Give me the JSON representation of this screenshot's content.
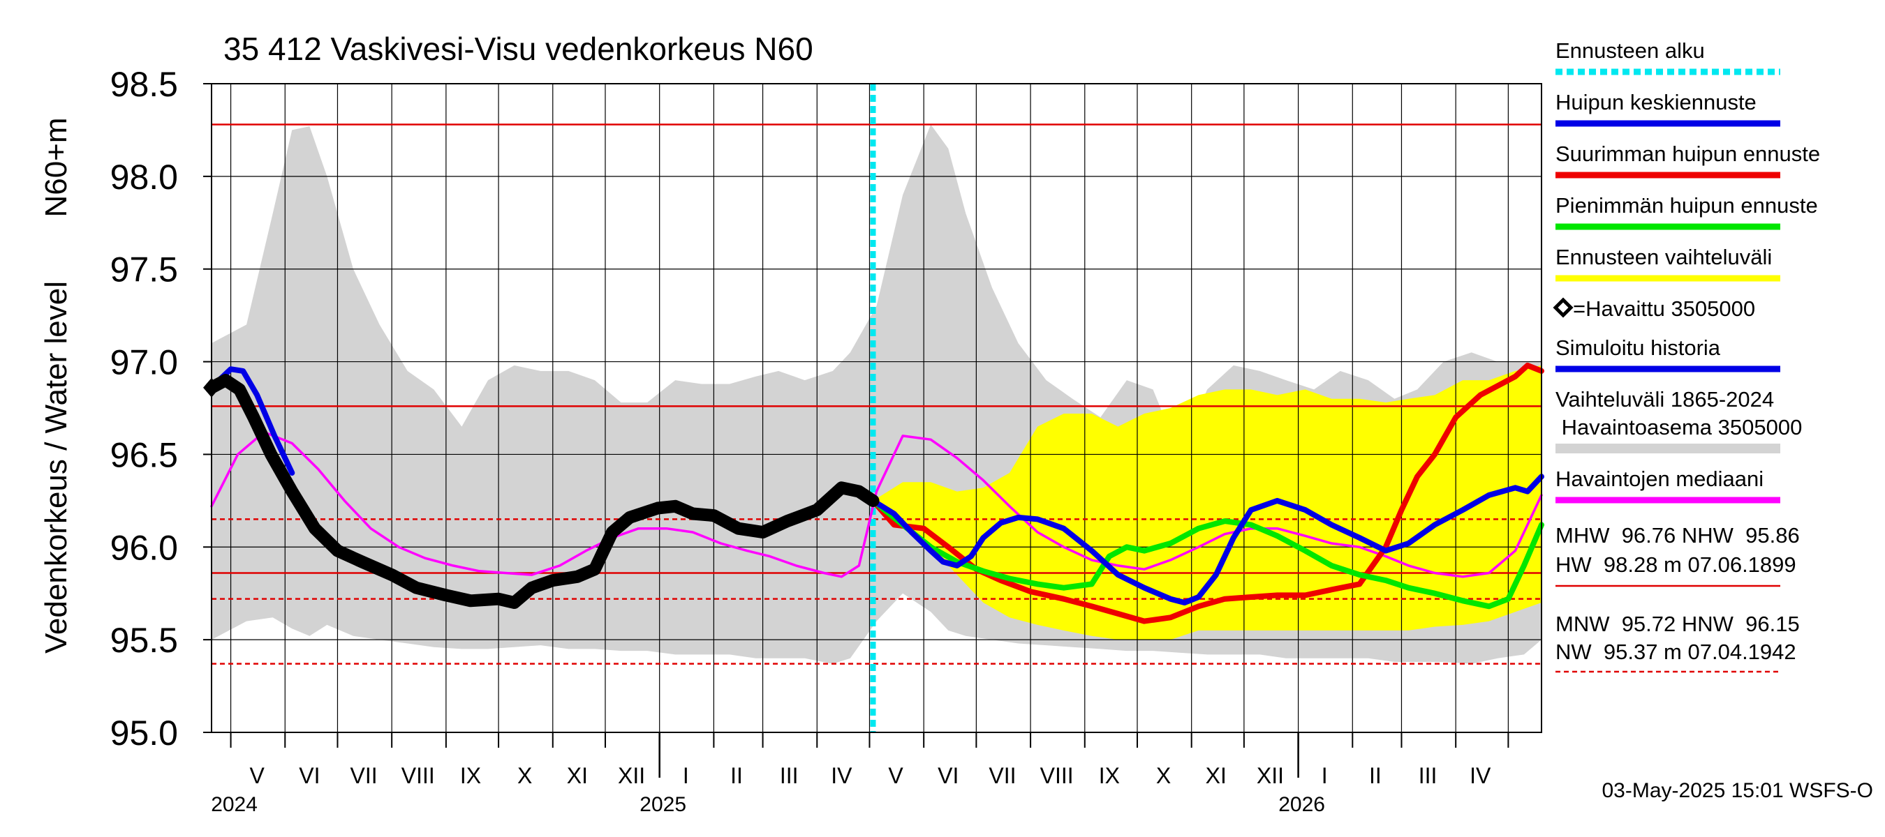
{
  "chart_data": {
    "type": "line",
    "title": "35 412 Vaskivesi-Visu vedenkorkeus N60",
    "ylabel_left": "Vedenkorkeus / Water level",
    "ylabel_unit": "N60+m",
    "ylim": [
      95.0,
      98.5
    ],
    "yticks": [
      95.0,
      95.5,
      96.0,
      96.5,
      97.0,
      97.5,
      98.0,
      98.5
    ],
    "ytick_labels": [
      "95.0",
      "95.5",
      "96.0",
      "96.5",
      "97.0",
      "97.5",
      "98.0",
      "98.5"
    ],
    "x_range": [
      "2024-04-20",
      "2026-05-20"
    ],
    "month_labels": [
      {
        "label": "V",
        "date": "2024-05-16"
      },
      {
        "label": "VI",
        "date": "2024-06-15"
      },
      {
        "label": "VII",
        "date": "2024-07-16"
      },
      {
        "label": "VIII",
        "date": "2024-08-16"
      },
      {
        "label": "IX",
        "date": "2024-09-15"
      },
      {
        "label": "X",
        "date": "2024-10-16"
      },
      {
        "label": "XI",
        "date": "2024-11-15"
      },
      {
        "label": "XII",
        "date": "2024-12-16"
      },
      {
        "label": "I",
        "date": "2025-01-16"
      },
      {
        "label": "II",
        "date": "2025-02-14"
      },
      {
        "label": "III",
        "date": "2025-03-16"
      },
      {
        "label": "IV",
        "date": "2025-04-15"
      },
      {
        "label": "V",
        "date": "2025-05-16"
      },
      {
        "label": "VI",
        "date": "2025-06-15"
      },
      {
        "label": "VII",
        "date": "2025-07-16"
      },
      {
        "label": "VIII",
        "date": "2025-08-16"
      },
      {
        "label": "IX",
        "date": "2025-09-15"
      },
      {
        "label": "X",
        "date": "2025-10-16"
      },
      {
        "label": "XI",
        "date": "2025-11-15"
      },
      {
        "label": "XII",
        "date": "2025-12-16"
      },
      {
        "label": "I",
        "date": "2026-01-16"
      },
      {
        "label": "II",
        "date": "2026-02-14"
      },
      {
        "label": "III",
        "date": "2026-03-16"
      },
      {
        "label": "IV",
        "date": "2026-04-15"
      }
    ],
    "year_labels": [
      {
        "label": "2024",
        "date": "2024-05-01"
      },
      {
        "label": "2025",
        "date": "2025-01-01"
      },
      {
        "label": "2026",
        "date": "2026-01-01"
      }
    ],
    "forecast_start": "2025-05-03",
    "reference_lines": [
      {
        "name": "HW",
        "value": 98.28,
        "style": "solid",
        "color": "#e00000"
      },
      {
        "name": "MHW",
        "value": 96.76,
        "style": "solid",
        "color": "#e00000"
      },
      {
        "name": "HNW",
        "value": 96.15,
        "style": "dashed",
        "color": "#e00000"
      },
      {
        "name": "NHW",
        "value": 95.86,
        "style": "solid",
        "color": "#e00000"
      },
      {
        "name": "MNW",
        "value": 95.72,
        "style": "dashed",
        "color": "#e00000"
      },
      {
        "name": "NW",
        "value": 95.37,
        "style": "dashed",
        "color": "#e00000"
      }
    ],
    "historical_range": {
      "color": "#d3d3d3",
      "dates": [
        "2024-04-20",
        "2024-05-10",
        "2024-05-25",
        "2024-06-05",
        "2024-06-15",
        "2024-06-25",
        "2024-07-10",
        "2024-07-25",
        "2024-08-10",
        "2024-08-25",
        "2024-09-10",
        "2024-09-25",
        "2024-10-10",
        "2024-10-25",
        "2024-11-10",
        "2024-11-25",
        "2024-12-10",
        "2024-12-25",
        "2025-01-10",
        "2025-01-25",
        "2025-02-10",
        "2025-02-25",
        "2025-03-10",
        "2025-03-25",
        "2025-04-10",
        "2025-04-20",
        "2025-05-05",
        "2025-05-20",
        "2025-06-05",
        "2025-06-15",
        "2025-06-25",
        "2025-07-10",
        "2025-07-25",
        "2025-08-10",
        "2025-08-25",
        "2025-09-10",
        "2025-09-25",
        "2025-10-10",
        "2025-10-25",
        "2025-11-10",
        "2025-11-25",
        "2025-12-10",
        "2025-12-25",
        "2026-01-10",
        "2026-01-25",
        "2026-02-10",
        "2026-02-25",
        "2026-03-10",
        "2026-03-25",
        "2026-04-10",
        "2026-04-25",
        "2026-05-10",
        "2026-05-20"
      ],
      "upper": [
        97.1,
        97.2,
        97.8,
        98.25,
        98.27,
        98.0,
        97.5,
        97.2,
        96.95,
        96.85,
        96.65,
        96.9,
        96.98,
        96.95,
        96.95,
        96.9,
        96.78,
        96.78,
        96.9,
        96.88,
        96.88,
        96.92,
        96.95,
        96.9,
        96.95,
        97.05,
        97.3,
        97.9,
        98.28,
        98.15,
        97.8,
        97.4,
        97.1,
        96.9,
        96.8,
        96.7,
        96.9,
        96.85,
        96.5,
        96.85,
        96.98,
        96.95,
        96.9,
        96.85,
        96.95,
        96.9,
        96.8,
        96.85,
        97.0,
        97.05,
        97.0,
        97.0,
        97.0
      ],
      "lower": [
        95.5,
        95.6,
        95.62,
        95.56,
        95.52,
        95.58,
        95.52,
        95.5,
        95.48,
        95.46,
        95.45,
        95.45,
        95.46,
        95.47,
        95.45,
        95.45,
        95.44,
        95.44,
        95.42,
        95.42,
        95.42,
        95.4,
        95.4,
        95.4,
        95.37,
        95.4,
        95.6,
        95.75,
        95.65,
        95.55,
        95.52,
        95.5,
        95.48,
        95.47,
        95.46,
        95.45,
        95.44,
        95.44,
        95.43,
        95.42,
        95.42,
        95.42,
        95.4,
        95.4,
        95.4,
        95.4,
        95.38,
        95.38,
        95.38,
        95.37,
        95.4,
        95.42,
        95.5
      ]
    },
    "forecast_range": {
      "color": "#ffff00",
      "dates": [
        "2025-05-03",
        "2025-05-20",
        "2025-06-05",
        "2025-06-20",
        "2025-07-05",
        "2025-07-20",
        "2025-08-05",
        "2025-08-20",
        "2025-09-05",
        "2025-09-20",
        "2025-10-05",
        "2025-10-20",
        "2025-11-05",
        "2025-11-20",
        "2025-12-05",
        "2025-12-20",
        "2026-01-05",
        "2026-01-20",
        "2026-02-05",
        "2026-02-20",
        "2026-03-05",
        "2026-03-20",
        "2026-04-05",
        "2026-04-20",
        "2026-05-05",
        "2026-05-20"
      ],
      "upper": [
        96.25,
        96.35,
        96.35,
        96.3,
        96.32,
        96.4,
        96.65,
        96.72,
        96.72,
        96.65,
        96.72,
        96.75,
        96.82,
        96.85,
        96.85,
        96.82,
        96.85,
        96.8,
        96.8,
        96.78,
        96.8,
        96.82,
        96.9,
        96.9,
        96.95,
        96.98
      ],
      "lower": [
        96.25,
        96.1,
        96.0,
        95.85,
        95.7,
        95.62,
        95.58,
        95.55,
        95.52,
        95.5,
        95.5,
        95.5,
        95.55,
        95.55,
        95.55,
        95.55,
        95.55,
        95.55,
        95.55,
        95.55,
        95.55,
        95.57,
        95.58,
        95.6,
        95.65,
        95.7
      ]
    },
    "series": [
      {
        "name": "=Havaittu 3505000",
        "color": "#000000",
        "dates": [
          "2024-04-20",
          "2024-04-28",
          "2024-05-06",
          "2024-05-14",
          "2024-05-24",
          "2024-06-05",
          "2024-06-18",
          "2024-07-01",
          "2024-07-15",
          "2024-08-01",
          "2024-08-15",
          "2024-09-01",
          "2024-09-15",
          "2024-10-01",
          "2024-10-10",
          "2024-10-20",
          "2024-11-01",
          "2024-11-15",
          "2024-11-25",
          "2024-12-05",
          "2024-12-15",
          "2024-12-31",
          "2025-01-10",
          "2025-01-20",
          "2025-02-01",
          "2025-02-15",
          "2025-03-01",
          "2025-03-15",
          "2025-04-01",
          "2025-04-15",
          "2025-04-25",
          "2025-05-03"
        ],
        "values": [
          96.86,
          96.9,
          96.85,
          96.7,
          96.5,
          96.3,
          96.1,
          95.98,
          95.92,
          95.85,
          95.78,
          95.74,
          95.71,
          95.72,
          95.7,
          95.78,
          95.82,
          95.84,
          95.88,
          96.08,
          96.16,
          96.21,
          96.22,
          96.18,
          96.17,
          96.1,
          96.08,
          96.14,
          96.2,
          96.32,
          96.3,
          96.25
        ]
      },
      {
        "name": "Simuloitu historia",
        "color": "#0000e6",
        "dates": [
          "2024-04-22",
          "2024-05-01",
          "2024-05-08",
          "2024-05-16",
          "2024-05-26",
          "2024-06-05"
        ],
        "values": [
          96.88,
          96.96,
          96.95,
          96.82,
          96.6,
          96.4
        ]
      },
      {
        "name": "Havaintojen mediaani",
        "color": "#ff00ff",
        "dates": [
          "2024-04-20",
          "2024-05-05",
          "2024-05-20",
          "2024-06-05",
          "2024-06-20",
          "2024-07-05",
          "2024-07-20",
          "2024-08-05",
          "2024-08-20",
          "2024-09-05",
          "2024-09-20",
          "2024-10-05",
          "2024-10-20",
          "2024-11-05",
          "2024-11-20",
          "2024-12-05",
          "2024-12-20",
          "2025-01-05",
          "2025-01-20",
          "2025-02-05",
          "2025-02-20",
          "2025-03-05",
          "2025-03-20",
          "2025-04-05",
          "2025-04-15",
          "2025-04-25",
          "2025-05-05",
          "2025-05-20",
          "2025-06-05",
          "2025-06-20",
          "2025-07-05",
          "2025-07-20",
          "2025-08-05",
          "2025-08-20",
          "2025-09-05",
          "2025-09-20",
          "2025-10-05",
          "2025-10-20",
          "2025-11-05",
          "2025-11-20",
          "2025-12-05",
          "2025-12-20",
          "2026-01-05",
          "2026-01-20",
          "2026-02-05",
          "2026-02-20",
          "2026-03-05",
          "2026-03-20",
          "2026-04-05",
          "2026-04-20",
          "2026-05-05",
          "2026-05-20"
        ],
        "values": [
          96.22,
          96.5,
          96.62,
          96.56,
          96.42,
          96.25,
          96.1,
          96.0,
          95.94,
          95.9,
          95.87,
          95.86,
          95.85,
          95.9,
          95.98,
          96.05,
          96.1,
          96.1,
          96.08,
          96.02,
          95.98,
          95.95,
          95.9,
          95.86,
          95.84,
          95.9,
          96.3,
          96.6,
          96.58,
          96.48,
          96.36,
          96.22,
          96.08,
          96.0,
          95.93,
          95.9,
          95.88,
          95.93,
          96.0,
          96.07,
          96.1,
          96.1,
          96.06,
          96.02,
          96.0,
          95.95,
          95.9,
          95.86,
          95.84,
          95.86,
          95.98,
          96.28
        ]
      },
      {
        "name": "Huipun keskiennuste",
        "color": "#0000e6",
        "dates": [
          "2025-05-03",
          "2025-05-15",
          "2025-05-25",
          "2025-06-05",
          "2025-06-12",
          "2025-06-20",
          "2025-06-28",
          "2025-07-05",
          "2025-07-15",
          "2025-07-25",
          "2025-08-05",
          "2025-08-20",
          "2025-09-05",
          "2025-09-20",
          "2025-10-05",
          "2025-10-20",
          "2025-10-28",
          "2025-11-05",
          "2025-11-15",
          "2025-11-25",
          "2025-12-05",
          "2025-12-20",
          "2026-01-05",
          "2026-01-20",
          "2026-02-05",
          "2026-02-20",
          "2026-03-05",
          "2026-03-20",
          "2026-04-05",
          "2026-04-20",
          "2026-05-05",
          "2026-05-12",
          "2026-05-20"
        ],
        "values": [
          96.25,
          96.18,
          96.08,
          95.98,
          95.92,
          95.9,
          95.95,
          96.05,
          96.13,
          96.16,
          96.15,
          96.1,
          95.98,
          95.85,
          95.78,
          95.72,
          95.7,
          95.73,
          95.85,
          96.05,
          96.2,
          96.25,
          96.2,
          96.12,
          96.05,
          95.98,
          96.02,
          96.12,
          96.2,
          96.28,
          96.32,
          96.3,
          96.38
        ]
      },
      {
        "name": "Suurimman huipun ennuste",
        "color": "#ee0000",
        "dates": [
          "2025-05-03",
          "2025-05-15",
          "2025-06-01",
          "2025-06-15",
          "2025-07-01",
          "2025-07-15",
          "2025-08-01",
          "2025-08-20",
          "2025-09-05",
          "2025-09-20",
          "2025-10-05",
          "2025-10-20",
          "2025-11-05",
          "2025-11-20",
          "2025-12-05",
          "2025-12-20",
          "2026-01-05",
          "2026-01-20",
          "2026-02-05",
          "2026-02-20",
          "2026-03-01",
          "2026-03-10",
          "2026-03-20",
          "2026-04-01",
          "2026-04-15",
          "2026-04-25",
          "2026-05-05",
          "2026-05-12",
          "2026-05-20"
        ],
        "values": [
          96.25,
          96.12,
          96.1,
          96.0,
          95.88,
          95.82,
          95.76,
          95.72,
          95.68,
          95.64,
          95.6,
          95.62,
          95.68,
          95.72,
          95.73,
          95.74,
          95.74,
          95.77,
          95.8,
          96.0,
          96.2,
          96.38,
          96.5,
          96.7,
          96.82,
          96.87,
          96.92,
          96.98,
          96.95
        ]
      },
      {
        "name": "Pienimmän huipun ennuste",
        "color": "#00e600",
        "dates": [
          "2025-05-03",
          "2025-05-20",
          "2025-06-05",
          "2025-06-20",
          "2025-07-05",
          "2025-07-20",
          "2025-08-05",
          "2025-08-20",
          "2025-09-05",
          "2025-09-15",
          "2025-09-25",
          "2025-10-05",
          "2025-10-20",
          "2025-11-05",
          "2025-11-20",
          "2025-12-05",
          "2025-12-20",
          "2026-01-05",
          "2026-01-20",
          "2026-02-05",
          "2026-02-20",
          "2026-03-05",
          "2026-03-20",
          "2026-04-05",
          "2026-04-20",
          "2026-05-01",
          "2026-05-10",
          "2026-05-20"
        ],
        "values": [
          96.25,
          96.12,
          96.0,
          95.92,
          95.87,
          95.83,
          95.8,
          95.78,
          95.8,
          95.95,
          96.0,
          95.98,
          96.02,
          96.1,
          96.14,
          96.12,
          96.06,
          95.98,
          95.9,
          95.85,
          95.82,
          95.78,
          95.75,
          95.71,
          95.68,
          95.72,
          95.9,
          96.12
        ]
      }
    ],
    "legend": [
      {
        "label": "Ennusteen alku",
        "color": "#00e8f0",
        "style": "dotted"
      },
      {
        "label": "Huipun keskiennuste",
        "color": "#0000e6",
        "style": "solid"
      },
      {
        "label": "Suurimman huipun ennuste",
        "color": "#ee0000",
        "style": "solid"
      },
      {
        "label": "Pienimmän huipun ennuste",
        "color": "#00e600",
        "style": "solid"
      },
      {
        "label": "Ennusteen vaihteluväli",
        "color": "#ffff00",
        "style": "solid"
      },
      {
        "label": "=Havaittu 3505000",
        "color": "#000000",
        "style": "diamond"
      },
      {
        "label": "Simuloitu historia",
        "color": "#0000e6",
        "style": "solid"
      },
      {
        "label": "Vaihteluväli 1865-2024",
        "label2": " Havaintoasema 3505000",
        "color": "#d3d3d3",
        "style": "band"
      },
      {
        "label": "Havaintojen mediaani",
        "color": "#ff00ff",
        "style": "solid"
      }
    ],
    "stats_text": [
      "MHW  96.76 NHW  95.86",
      "HW  98.28 m 07.06.1899",
      "MNW  95.72 HNW  96.15",
      "NW  95.37 m 07.04.1942"
    ],
    "footer": "03-May-2025 15:01 WSFS-O",
    "grid": true
  }
}
